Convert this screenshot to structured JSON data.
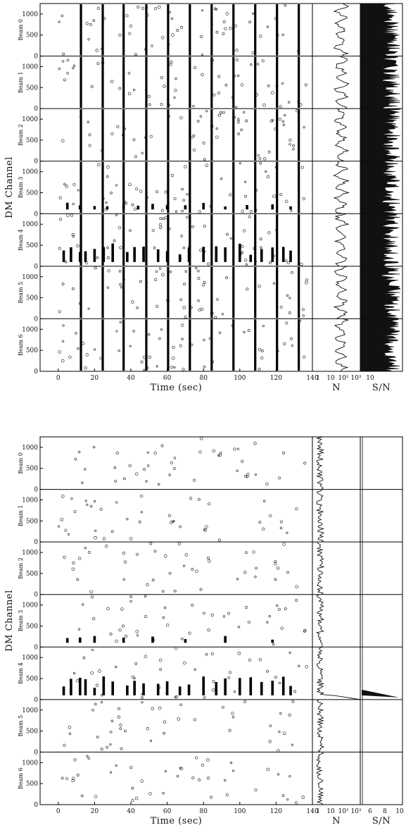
{
  "chart_data": [
    {
      "type": "scatter",
      "panel": "top",
      "ylabel": "DM Channel",
      "xlabel": "Time (sec)",
      "beams": [
        "Beam 0",
        "Beam 1",
        "Beam 2",
        "Beam 3",
        "Beam 4",
        "Beam 5",
        "Beam 6"
      ],
      "xlim": [
        -10,
        140
      ],
      "xticks": [
        0,
        20,
        40,
        60,
        80,
        100,
        120,
        140
      ],
      "ylim": [
        0,
        1250
      ],
      "yticks": [
        0,
        500,
        1000
      ],
      "background_density": 55,
      "vertical_bursts_sec": [
        12.5,
        24.5,
        36,
        48.5,
        60.5,
        72.5,
        84.5,
        96.5,
        108.5,
        120.5,
        132.5
      ],
      "low_dm_events": [
        {
          "beam": 3,
          "times_sec": [
            5,
            12,
            20,
            27,
            36,
            44,
            52,
            60,
            70,
            80,
            92,
            104,
            118,
            128
          ]
        },
        {
          "beam": 4,
          "times_sec": [
            3,
            7,
            12,
            15,
            20,
            25,
            30,
            38,
            42,
            47,
            55,
            60,
            67,
            72,
            80,
            87,
            92,
            100,
            106,
            112,
            118,
            124,
            128
          ]
        }
      ],
      "histogram_N": {
        "xlabel": "N",
        "tick_labels": [
          "1",
          "10",
          "10²",
          "10³"
        ]
      },
      "histogram_SN": {
        "xlabel": "S/N",
        "tick_labels": [
          "10"
        ]
      }
    },
    {
      "type": "scatter",
      "panel": "bottom",
      "ylabel": "DM Channel",
      "xlabel": "Time (sec)",
      "beams": [
        "Beam 0",
        "Beam 1",
        "Beam 2",
        "Beam 3",
        "Beam 4",
        "Beam 5",
        "Beam 6"
      ],
      "xlim": [
        -10,
        140
      ],
      "xticks": [
        0,
        20,
        40,
        60,
        80,
        100,
        120,
        140
      ],
      "ylim": [
        0,
        1250
      ],
      "yticks": [
        0,
        500,
        1000
      ],
      "background_density": 42,
      "vertical_bursts_sec": [],
      "low_dm_events": [
        {
          "beam": 3,
          "times_sec": [
            5,
            12,
            20,
            36,
            52,
            70,
            92,
            118
          ]
        },
        {
          "beam": 4,
          "times_sec": [
            3,
            7,
            12,
            15,
            20,
            25,
            30,
            38,
            42,
            47,
            55,
            60,
            67,
            72,
            80,
            87,
            92,
            100,
            106,
            112,
            118,
            124,
            128
          ]
        }
      ],
      "histogram_N": {
        "xlabel": "N",
        "tick_labels": [
          "1",
          "10",
          "10²",
          "10³"
        ]
      },
      "histogram_SN": {
        "xlabel": "S/N",
        "tick_labels": [
          "6",
          "8",
          "10"
        ]
      }
    }
  ]
}
